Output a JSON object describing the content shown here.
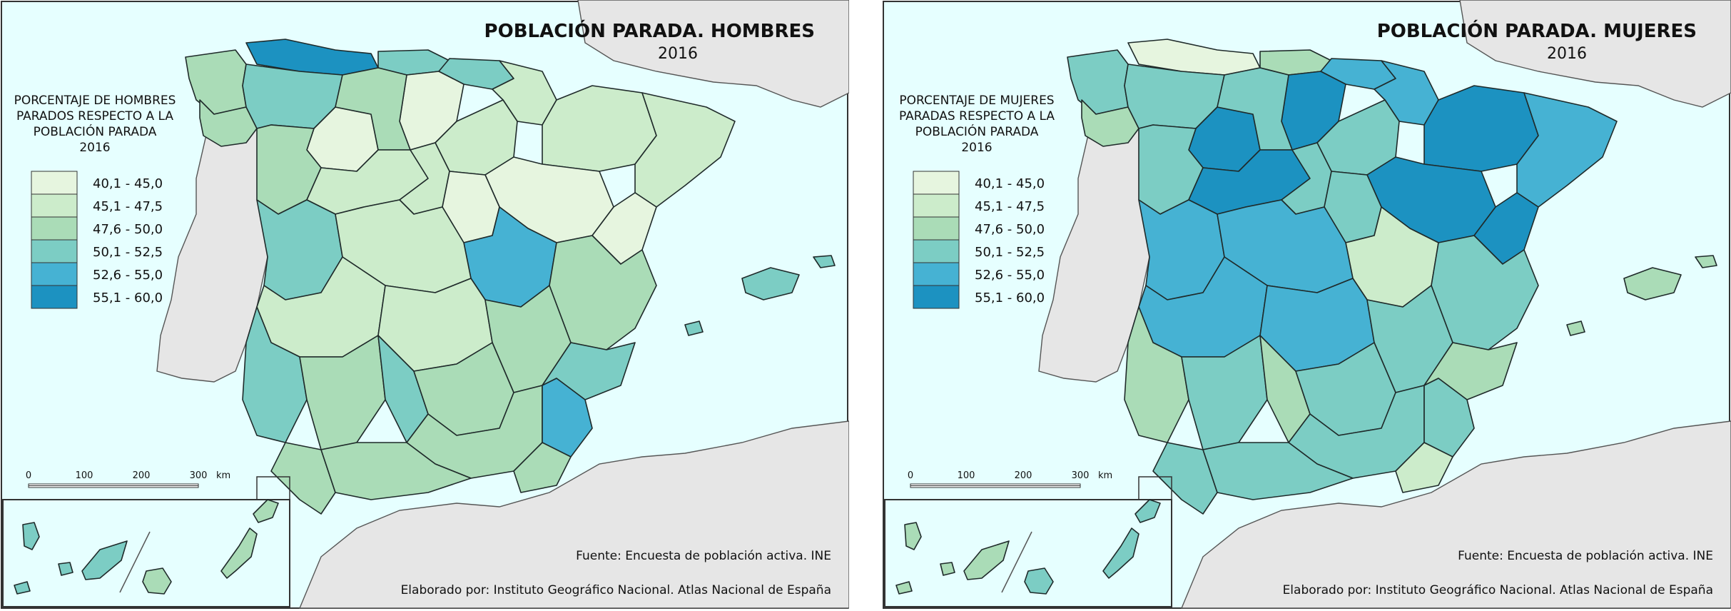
{
  "colors": {
    "sea": "#e6ffff",
    "land_other": "#e6e6e6",
    "classes": [
      "#e6f5df",
      "#cceccb",
      "#aadcb7",
      "#7ccdc4",
      "#46b2d3",
      "#1c92c1"
    ]
  },
  "legend_ranges": [
    "40,1 - 45,0",
    "45,1 - 47,5",
    "47,6 - 50,0",
    "50,1 - 52,5",
    "52,6 - 55,0",
    "55,1 - 60,0"
  ],
  "scale": {
    "ticks": [
      "0",
      "100",
      "200",
      "300"
    ],
    "unit": "km"
  },
  "credits": {
    "source": "Fuente: Encuesta de población activa. INE",
    "author": "Elaborado por: Instituto Geográfico Nacional. Atlas Nacional de España"
  },
  "maps": [
    {
      "title": "POBLACIÓN PARADA. HOMBRES",
      "year": "2016",
      "legend_title": [
        "PORCENTAJE DE HOMBRES",
        "PARADOS RESPECTO A LA",
        "POBLACIÓN PARADA",
        "2016"
      ],
      "regions": {
        "galicia_n": 2,
        "galicia_s": 2,
        "asturias": 5,
        "cantabria": 3,
        "pais_vasco": 3,
        "navarra": 1,
        "leon": 3,
        "burgos": 0,
        "zamora": 0,
        "valladolid": 2,
        "soria": 1,
        "aragon_n": 1,
        "aragon_s": 0,
        "catalonia": 1,
        "teruel": 0,
        "salamanca": 2,
        "avila": 1,
        "madrid": 1,
        "guadalajara": 0,
        "cuenca": 4,
        "caceres": 3,
        "toledo": 1,
        "badajoz": 1,
        "ciudad_real": 1,
        "valencia": 2,
        "albacete": 2,
        "alicante": 3,
        "huelva": 3,
        "sevilla": 2,
        "cordoba": 3,
        "jaen": 2,
        "granada": 2,
        "murcia": 4,
        "almeria": 2,
        "cadiz": 2,
        "malaga": 2,
        "baleares": 3,
        "canarias_w": 3,
        "canarias_e": 2
      }
    },
    {
      "title": "POBLACIÓN PARADA. MUJERES",
      "year": "2016",
      "legend_title": [
        "PORCENTAJE DE MUJERES",
        "PARADAS RESPECTO A LA",
        "POBLACIÓN PARADA",
        "2016"
      ],
      "regions": {
        "galicia_n": 3,
        "galicia_s": 2,
        "asturias": 0,
        "cantabria": 2,
        "pais_vasco": 4,
        "navarra": 4,
        "leon": 3,
        "burgos": 5,
        "zamora": 5,
        "valladolid": 3,
        "soria": 3,
        "aragon_n": 5,
        "aragon_s": 5,
        "catalonia": 4,
        "teruel": 5,
        "salamanca": 3,
        "avila": 5,
        "madrid": 3,
        "guadalajara": 3,
        "cuenca": 1,
        "caceres": 4,
        "toledo": 4,
        "badajoz": 4,
        "ciudad_real": 4,
        "valencia": 3,
        "albacete": 3,
        "alicante": 2,
        "huelva": 2,
        "sevilla": 3,
        "cordoba": 2,
        "jaen": 3,
        "granada": 3,
        "murcia": 3,
        "almeria": 1,
        "cadiz": 3,
        "malaga": 3,
        "baleares": 2,
        "canarias_w": 2,
        "canarias_e": 3
      }
    }
  ]
}
